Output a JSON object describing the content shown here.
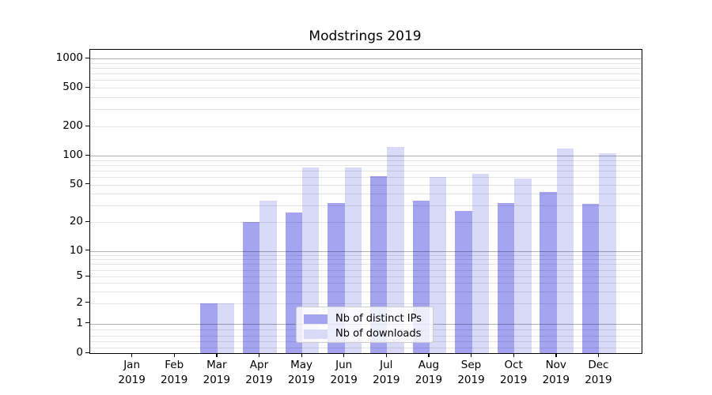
{
  "title": "Modstrings 2019",
  "chart_data": {
    "type": "bar",
    "title": "Modstrings 2019",
    "categories": [
      "Jan 2019",
      "Feb 2019",
      "Mar 2019",
      "Apr 2019",
      "May 2019",
      "Jun 2019",
      "Jul 2019",
      "Aug 2019",
      "Sep 2019",
      "Oct 2019",
      "Nov 2019",
      "Dec 2019"
    ],
    "x_tick_months": [
      "Jan",
      "Feb",
      "Mar",
      "Apr",
      "May",
      "Jun",
      "Jul",
      "Aug",
      "Sep",
      "Oct",
      "Nov",
      "Dec"
    ],
    "x_tick_year": "2019",
    "series": [
      {
        "name": "Nb of distinct IPs",
        "color": "#a4a4f1",
        "values": [
          0,
          0,
          2,
          20,
          25,
          32,
          61,
          34,
          26,
          32,
          42,
          31
        ]
      },
      {
        "name": "Nb of downloads",
        "color": "#d9d9f8",
        "values": [
          0,
          0,
          2,
          34,
          76,
          76,
          123,
          60,
          65,
          58,
          118,
          105
        ]
      }
    ],
    "y_axis": {
      "scale": "symlog",
      "tick_labels": [
        "0",
        "1",
        "2",
        "5",
        "10",
        "20",
        "50",
        "100",
        "200",
        "500",
        "1000"
      ],
      "ticks": [
        0,
        1,
        2,
        5,
        10,
        20,
        50,
        100,
        200,
        500,
        1000
      ],
      "minor_gridlines": [
        0.2,
        0.4,
        0.6,
        0.8,
        2,
        3,
        4,
        5,
        6,
        7,
        8,
        9,
        20,
        30,
        40,
        50,
        60,
        70,
        80,
        90,
        200,
        300,
        400,
        500,
        600,
        700,
        800,
        900
      ],
      "major_gridlines": [
        1,
        10,
        100,
        1000
      ],
      "range": [
        0,
        1100
      ]
    },
    "grid": "on, drawn above bars",
    "legend_position": "lower center inside plot"
  },
  "colors": {
    "series_ips": "#a4a4f1",
    "series_downloads": "#d9d9f8",
    "grid_major": "#b3b3b3",
    "grid_minor": "#e6e6e6",
    "spine": "#000000",
    "legend_border": "#cccccc"
  }
}
